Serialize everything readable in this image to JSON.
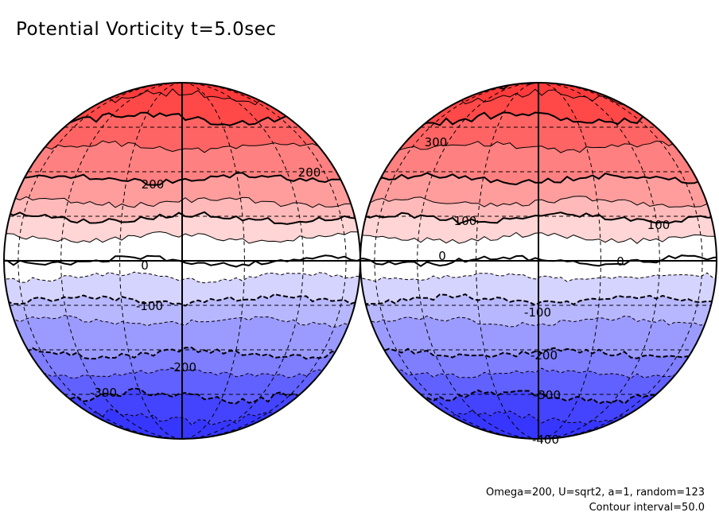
{
  "title": "Potential Vorticity t=5.0sec",
  "footer": {
    "params": "Omega=200, U=sqrt2, a=1, random=123",
    "interval": "Contour interval=50.0"
  },
  "colors": {
    "max_red": "#ff3a3a",
    "min_blue": "#3636ff",
    "white": "#ffffff"
  },
  "chart_data": {
    "type": "contour",
    "quantity": "Potential Vorticity",
    "time": "t=5.0sec",
    "contour_interval": 50.0,
    "levels": [
      400,
      350,
      300,
      250,
      200,
      150,
      100,
      50,
      0,
      -50,
      -100,
      -150,
      -200,
      -250,
      -300,
      -350,
      -400
    ],
    "hemispheres": [
      {
        "name": "left",
        "labels": [
          {
            "text": "200",
            "level": 200
          },
          {
            "text": "200",
            "level": 200
          },
          {
            "text": "0",
            "level": 0
          },
          {
            "text": "-100",
            "level": -100
          },
          {
            "text": "-200",
            "level": -200
          },
          {
            "text": "-300",
            "level": -300
          }
        ]
      },
      {
        "name": "right",
        "labels": [
          {
            "text": "300",
            "level": 300
          },
          {
            "text": "100",
            "level": 100
          },
          {
            "text": "100",
            "level": 100
          },
          {
            "text": "0",
            "level": 0
          },
          {
            "text": "0",
            "level": 0
          },
          {
            "text": "-100",
            "level": -100
          },
          {
            "text": "-200",
            "level": -200
          },
          {
            "text": "-300",
            "level": -300
          },
          {
            "text": "-400",
            "level": -400
          }
        ]
      }
    ]
  }
}
